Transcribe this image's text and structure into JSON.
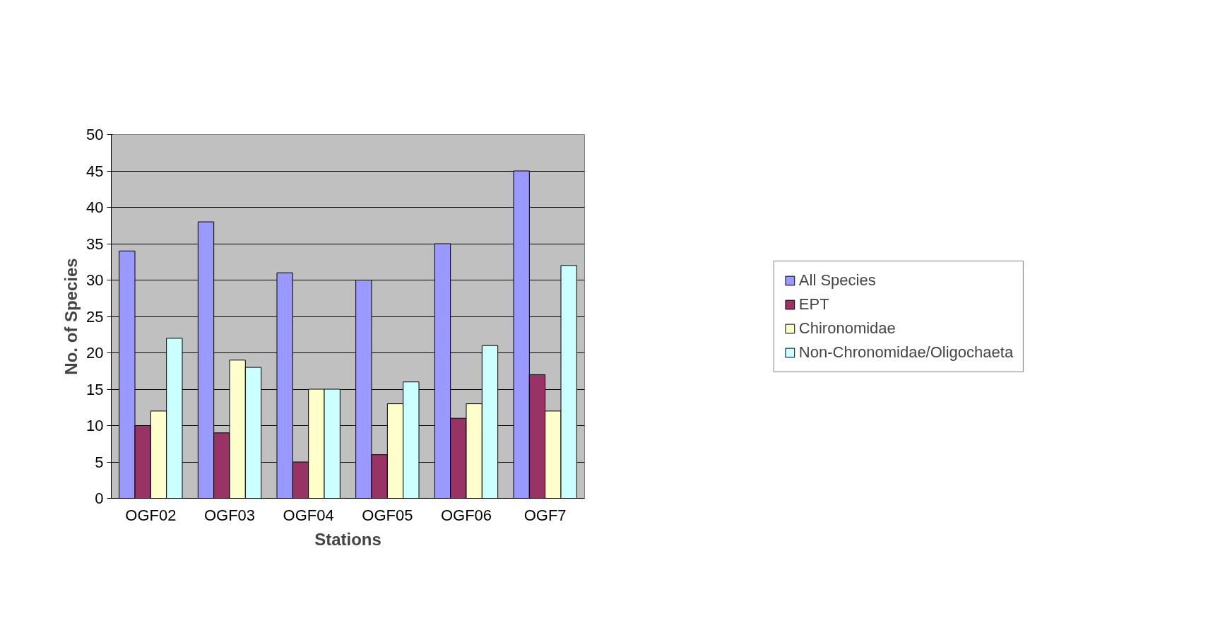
{
  "chart_data": {
    "type": "bar",
    "xlabel": "Stations",
    "ylabel": "No. of Species",
    "categories": [
      "OGF02",
      "OGF03",
      "OGF04",
      "OGF05",
      "OGF06",
      "OGF7"
    ],
    "series": [
      {
        "name": "All Species",
        "color": "#9999ff",
        "values": [
          34,
          38,
          31,
          30,
          35,
          45
        ]
      },
      {
        "name": "EPT",
        "color": "#993366",
        "values": [
          10,
          9,
          5,
          6,
          11,
          17
        ]
      },
      {
        "name": "Chironomidae",
        "color": "#ffffcc",
        "values": [
          12,
          19,
          15,
          13,
          13,
          12
        ]
      },
      {
        "name": "Non-Chronomidae/Oligochaeta",
        "color": "#ccffff",
        "values": [
          22,
          18,
          15,
          16,
          21,
          32
        ]
      }
    ],
    "ylim": [
      0,
      50
    ],
    "yticks": [
      0,
      5,
      10,
      15,
      20,
      25,
      30,
      35,
      40,
      45,
      50
    ],
    "grid": "y",
    "legend": "right"
  }
}
